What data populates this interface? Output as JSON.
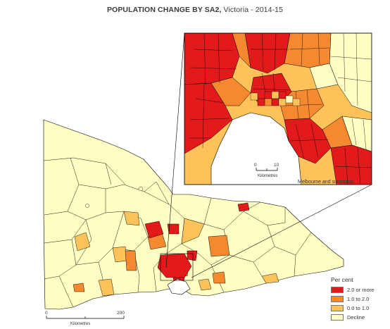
{
  "title": {
    "bold": "POPULATION CHANGE BY SA2,",
    "rest": " Victoria - 2014-15"
  },
  "legend": {
    "title": "Per cent",
    "items": [
      {
        "label": "2.0 or more",
        "color": "#e31a1c"
      },
      {
        "label": "1.0 to 2.0",
        "color": "#f4892f"
      },
      {
        "label": "0.0 to 1.0",
        "color": "#fdc25a"
      },
      {
        "label": "Decline",
        "color": "#ffffc4"
      }
    ]
  },
  "scale_main": {
    "start": "0",
    "end": "200",
    "unit": "Kilometres"
  },
  "scale_inset": {
    "start": "0",
    "end": "10",
    "unit": "Kilometres"
  },
  "inset_caption": "Melbourne and surrounds",
  "colors": {
    "boundary": "#000000",
    "water": "#ffffff",
    "frame": "#000000"
  }
}
